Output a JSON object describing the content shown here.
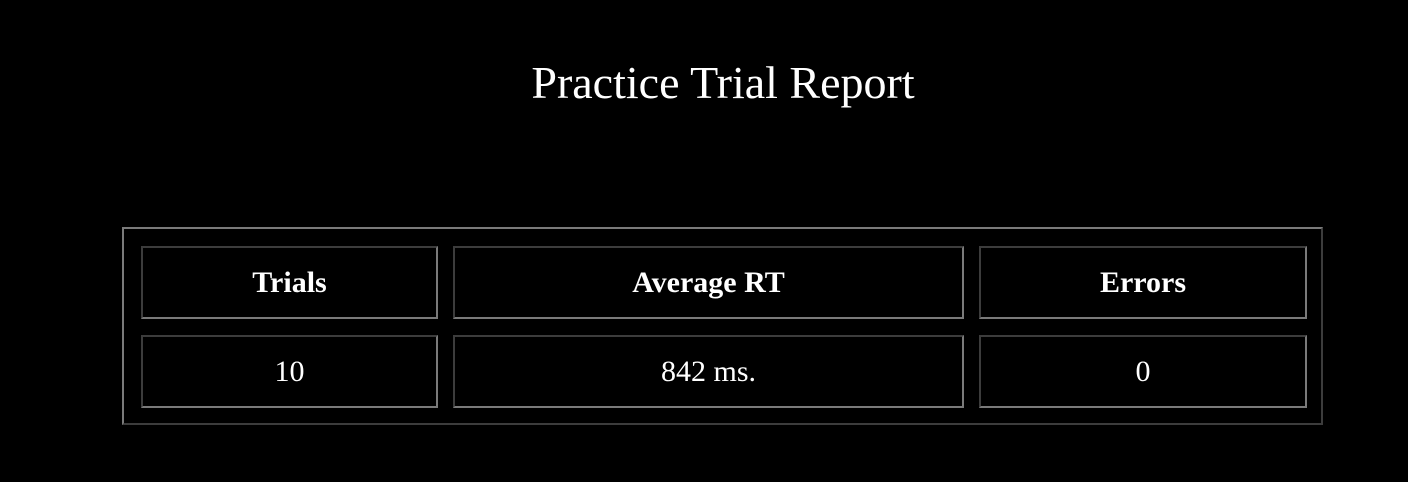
{
  "page": {
    "title": "Practice Trial Report"
  },
  "report": {
    "headers": {
      "trials": "Trials",
      "average_rt": "Average RT",
      "errors": "Errors"
    },
    "values": {
      "trials": "10",
      "average_rt": "842 ms.",
      "errors": "0"
    }
  },
  "colors": {
    "background": "#000000",
    "text": "#ffffff",
    "border_light": "#7a7a7a",
    "border_dark": "#3c3c3c"
  }
}
